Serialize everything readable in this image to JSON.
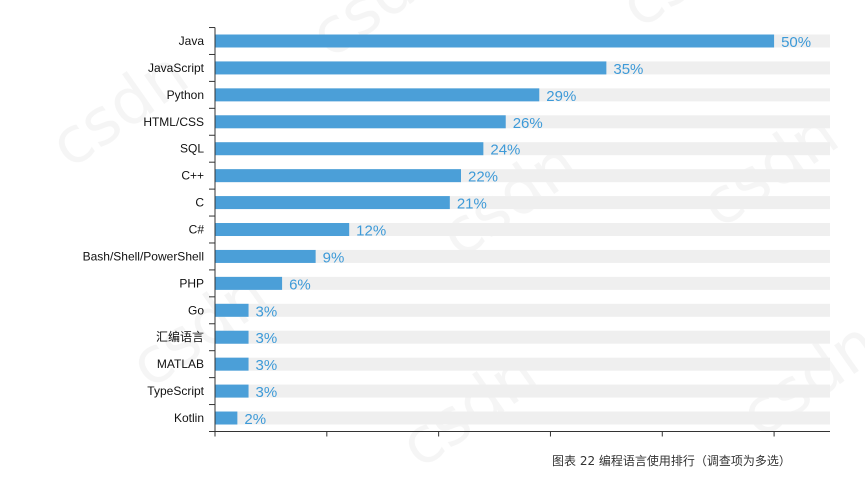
{
  "chart_data": {
    "type": "bar",
    "orientation": "horizontal",
    "categories": [
      "Java",
      "JavaScript",
      "Python",
      "HTML/CSS",
      "SQL",
      "C++",
      "C",
      "C#",
      "Bash/Shell/PowerShell",
      "PHP",
      "Go",
      "汇编语言",
      "MATLAB",
      "TypeScript",
      "Kotlin"
    ],
    "values": [
      50,
      35,
      29,
      26,
      24,
      22,
      21,
      12,
      9,
      6,
      3,
      3,
      3,
      3,
      2
    ],
    "value_labels": [
      "50%",
      "35%",
      "29%",
      "26%",
      "24%",
      "22%",
      "21%",
      "12%",
      "9%",
      "6%",
      "3%",
      "3%",
      "3%",
      "3%",
      "2%"
    ],
    "xlim": [
      0,
      55
    ],
    "x_ticks": [
      0,
      10,
      20,
      30,
      40,
      50
    ],
    "grid": false,
    "legend": "none",
    "caption": "图表 22  编程语言使用排行（调查项为多选）"
  },
  "colors": {
    "bar": "#4b9fd8",
    "track": "#efefef",
    "value_label": "#3d9ad8",
    "axis": "#333333"
  },
  "watermark": "csdn"
}
